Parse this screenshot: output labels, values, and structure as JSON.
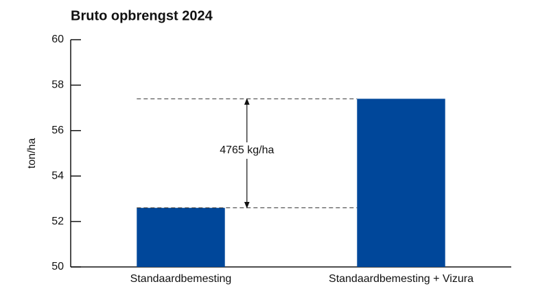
{
  "chart_data": {
    "type": "bar",
    "title": "Bruto opbrengst 2024",
    "y_label": "ton/ha",
    "categories": [
      "Standaardbemesting",
      "Standaardbemesting + Vizura"
    ],
    "values": [
      52.6,
      57.4
    ],
    "color": "#00479a",
    "ylim": [
      50,
      60
    ],
    "yticks": [
      50,
      52,
      54,
      56,
      58,
      60
    ],
    "grid": false,
    "annotation": "4765 kg/ha"
  }
}
